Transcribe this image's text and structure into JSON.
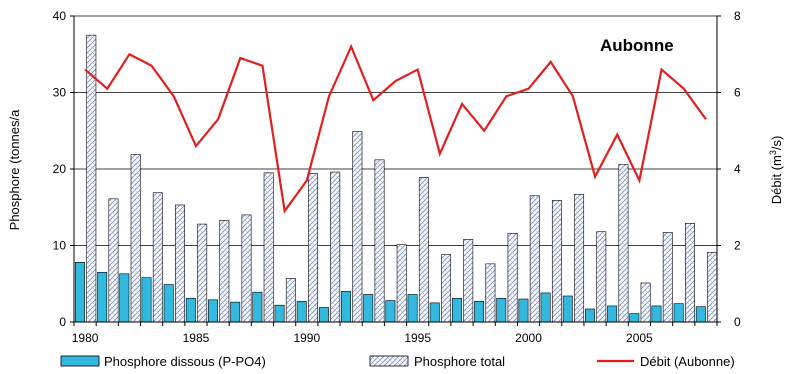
{
  "chart_data": {
    "type": "bar",
    "annotation": "Aubonne",
    "ylabel": "Phosphore (tonnes/a",
    "y2label": "Débit (m³/s)",
    "ylim": [
      0,
      40
    ],
    "y2lim": [
      0,
      8
    ],
    "yticks": [
      "0",
      "10",
      "20",
      "30",
      "40"
    ],
    "y2ticks": [
      "0",
      "2",
      "4",
      "6",
      "8"
    ],
    "xticks": [
      "1980",
      "1985",
      "1990",
      "1995",
      "2000",
      "2005"
    ],
    "grid": true,
    "legend_position": "bottom",
    "years": [
      1980,
      1981,
      1982,
      1983,
      1984,
      1985,
      1986,
      1987,
      1988,
      1989,
      1990,
      1991,
      1992,
      1993,
      1994,
      1995,
      1996,
      1997,
      1998,
      1999,
      2000,
      2001,
      2002,
      2003,
      2004,
      2005,
      2006,
      2007,
      2008
    ],
    "series": [
      {
        "name": "Phosphore dissous (P-PO4)",
        "kind": "bar",
        "axis": "left",
        "color": "#33B8E0",
        "values": [
          7.8,
          6.5,
          6.3,
          5.8,
          4.9,
          3.1,
          2.9,
          2.6,
          3.9,
          2.2,
          2.7,
          1.9,
          4.0,
          3.6,
          2.8,
          3.6,
          2.5,
          3.1,
          2.7,
          3.1,
          3.0,
          3.8,
          3.4,
          1.7,
          2.1,
          1.1,
          2.1,
          2.4,
          2.0
        ]
      },
      {
        "name": "Phosphore total",
        "kind": "bar",
        "axis": "left",
        "color": "#7A8FC0",
        "values": [
          37.5,
          16.1,
          21.9,
          16.9,
          15.3,
          12.8,
          13.3,
          14.0,
          19.5,
          5.7,
          19.4,
          19.6,
          24.9,
          21.2,
          10.1,
          18.9,
          8.8,
          10.8,
          7.6,
          11.6,
          16.5,
          15.9,
          16.7,
          11.8,
          20.6,
          5.1,
          11.7,
          12.9,
          9.1
        ]
      },
      {
        "name": "Débit (Aubonne)",
        "kind": "line",
        "axis": "right",
        "color": "#E02020",
        "values": [
          6.6,
          6.1,
          7.0,
          6.7,
          5.9,
          4.6,
          5.3,
          6.9,
          6.7,
          2.9,
          3.7,
          5.9,
          7.2,
          5.8,
          6.3,
          6.6,
          4.4,
          5.7,
          5.0,
          5.9,
          6.1,
          6.8,
          5.9,
          3.8,
          4.9,
          3.7,
          6.6,
          6.1,
          5.3
        ]
      }
    ]
  }
}
